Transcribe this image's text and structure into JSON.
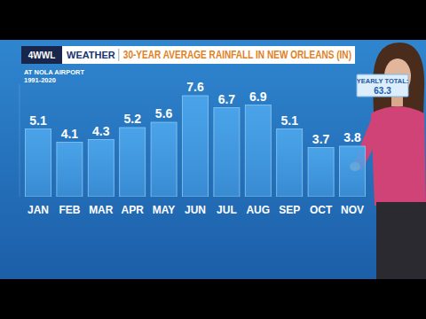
{
  "chart_data": {
    "type": "bar",
    "title": "30-YEAR AVERAGE RAINFALL IN NEW ORLEANS (IN)",
    "subtitle": [
      "AT NOLA AIRPORT",
      "1991-2020"
    ],
    "annotations": [
      {
        "text": "4WWL"
      },
      {
        "text": "WEATHER"
      },
      {
        "text": "YEARLY TOTAL:",
        "value": 63.3
      }
    ],
    "categories": [
      "JAN",
      "FEB",
      "MAR",
      "APR",
      "MAY",
      "JUN",
      "JUL",
      "AUG",
      "SEP",
      "OCT",
      "NOV"
    ],
    "values": [
      5.1,
      4.1,
      4.3,
      5.2,
      5.6,
      7.6,
      6.7,
      6.9,
      5.1,
      3.7,
      3.8
    ],
    "color": "#4aa3e8",
    "ylim": [
      0,
      8.5
    ],
    "grid": false,
    "data_labels": true,
    "tick_labels": "x"
  }
}
